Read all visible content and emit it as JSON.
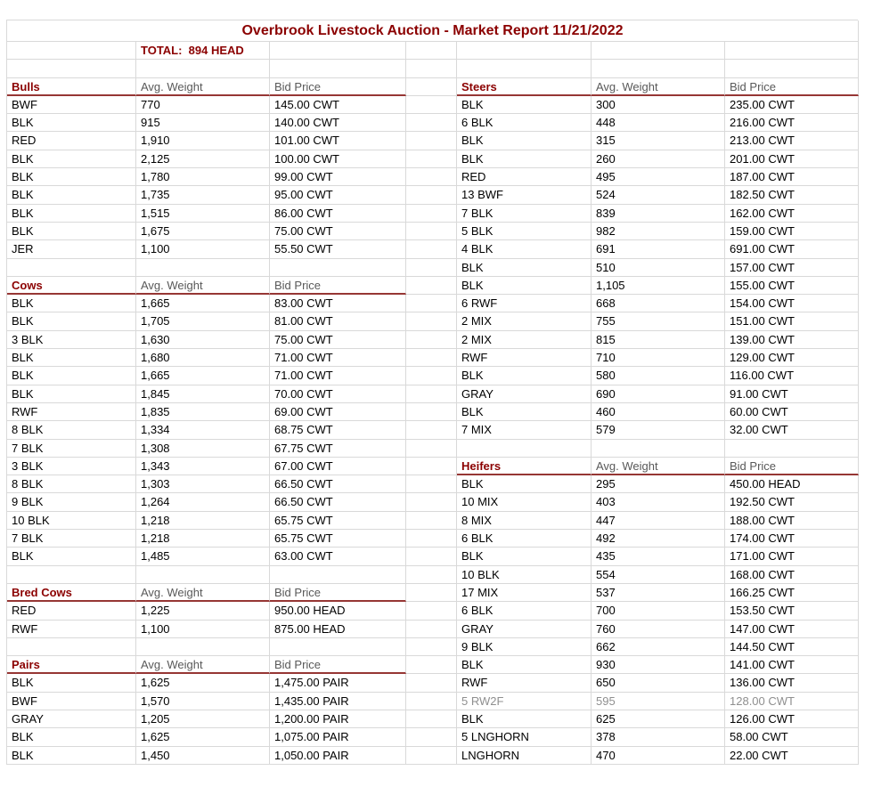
{
  "title": "Overbrook Livestock Auction - Market Report 11/21/2022",
  "total_label": "TOTAL:  894 HEAD",
  "column_headers": {
    "weight": "Avg. Weight",
    "price": "Bid Price"
  },
  "colors": {
    "accent_red": "#8B0000",
    "rule_red": "#963634",
    "grid_line": "#D9D9D9",
    "column_header_text": "#595959",
    "muted_text": "#8F8F8F",
    "data_text": "#000000"
  },
  "left_sections": [
    {
      "name": "Bulls",
      "rows": [
        [
          "BWF",
          "770",
          "145.00 CWT"
        ],
        [
          "BLK",
          "915",
          "140.00 CWT"
        ],
        [
          "RED",
          "1,910",
          "101.00 CWT"
        ],
        [
          "BLK",
          "2,125",
          "100.00 CWT"
        ],
        [
          "BLK",
          "1,780",
          "99.00 CWT"
        ],
        [
          "BLK",
          "1,735",
          "95.00 CWT"
        ],
        [
          "BLK",
          "1,515",
          "86.00 CWT"
        ],
        [
          "BLK",
          "1,675",
          "75.00 CWT"
        ],
        [
          "JER",
          "1,100",
          "55.50 CWT"
        ]
      ]
    },
    {
      "name": "Cows",
      "rows": [
        [
          "BLK",
          "1,665",
          "83.00 CWT"
        ],
        [
          "BLK",
          "1,705",
          "81.00 CWT"
        ],
        [
          "3 BLK",
          "1,630",
          "75.00 CWT"
        ],
        [
          "BLK",
          "1,680",
          "71.00 CWT"
        ],
        [
          "BLK",
          "1,665",
          "71.00 CWT"
        ],
        [
          "BLK",
          "1,845",
          "70.00 CWT"
        ],
        [
          "RWF",
          "1,835",
          "69.00 CWT"
        ],
        [
          "8 BLK",
          "1,334",
          "68.75 CWT"
        ],
        [
          "7 BLK",
          "1,308",
          "67.75 CWT"
        ],
        [
          "3 BLK",
          "1,343",
          "67.00 CWT"
        ],
        [
          "8 BLK",
          "1,303",
          "66.50 CWT"
        ],
        [
          "9 BLK",
          "1,264",
          "66.50 CWT"
        ],
        [
          "10 BLK",
          "1,218",
          "65.75 CWT"
        ],
        [
          "7 BLK",
          "1,218",
          "65.75 CWT"
        ],
        [
          "BLK",
          "1,485",
          "63.00 CWT"
        ]
      ]
    },
    {
      "name": "Bred Cows",
      "rows": [
        [
          "RED",
          "1,225",
          "950.00 HEAD"
        ],
        [
          "RWF",
          "1,100",
          "875.00 HEAD"
        ]
      ]
    },
    {
      "name": "Pairs",
      "rows": [
        [
          "BLK",
          "1,625",
          "1,475.00 PAIR"
        ],
        [
          "BWF",
          "1,570",
          "1,435.00 PAIR"
        ],
        [
          "GRAY",
          "1,205",
          "1,200.00 PAIR"
        ],
        [
          "BLK",
          "1,625",
          "1,075.00 PAIR"
        ],
        [
          "BLK",
          "1,450",
          "1,050.00 PAIR"
        ]
      ]
    }
  ],
  "right_sections": [
    {
      "name": "Steers",
      "rows": [
        [
          "BLK",
          "300",
          "235.00 CWT"
        ],
        [
          "6 BLK",
          "448",
          "216.00 CWT"
        ],
        [
          "BLK",
          "315",
          "213.00 CWT"
        ],
        [
          "BLK",
          "260",
          "201.00 CWT"
        ],
        [
          "RED",
          "495",
          "187.00 CWT"
        ],
        [
          "13 BWF",
          "524",
          "182.50 CWT"
        ],
        [
          "7 BLK",
          "839",
          "162.00 CWT"
        ],
        [
          "5 BLK",
          "982",
          "159.00 CWT"
        ],
        [
          "4 BLK",
          "691",
          "691.00 CWT"
        ],
        [
          "BLK",
          "510",
          "157.00 CWT"
        ],
        [
          "BLK",
          "1,105",
          "155.00 CWT"
        ],
        [
          "6 RWF",
          "668",
          "154.00 CWT"
        ],
        [
          "2 MIX",
          "755",
          "151.00 CWT"
        ],
        [
          "2 MIX",
          "815",
          "139.00 CWT"
        ],
        [
          "RWF",
          "710",
          "129.00 CWT"
        ],
        [
          "BLK",
          "580",
          "116.00 CWT"
        ],
        [
          "GRAY",
          "690",
          "91.00 CWT"
        ],
        [
          "BLK",
          "460",
          "60.00 CWT"
        ],
        [
          "7 MIX",
          "579",
          "32.00 CWT"
        ]
      ]
    },
    {
      "name": "Heifers",
      "rows": [
        [
          "BLK",
          "295",
          "450.00 HEAD"
        ],
        [
          "10 MIX",
          "403",
          "192.50 CWT"
        ],
        [
          "8 MIX",
          "447",
          "188.00 CWT"
        ],
        [
          "6 BLK",
          "492",
          "174.00 CWT"
        ],
        [
          "BLK",
          "435",
          "171.00 CWT"
        ],
        [
          "10 BLK",
          "554",
          "168.00 CWT"
        ],
        [
          "17 MIX",
          "537",
          "166.25 CWT"
        ],
        [
          "6 BLK",
          "700",
          "153.50 CWT"
        ],
        [
          "GRAY",
          "760",
          "147.00 CWT"
        ],
        [
          "9 BLK",
          "662",
          "144.50 CWT"
        ],
        [
          "BLK",
          "930",
          "141.00 CWT"
        ],
        [
          "RWF",
          "650",
          "136.00 CWT"
        ],
        [
          "5 RW2F",
          "595",
          "128.00 CWT",
          "muted"
        ],
        [
          "BLK",
          "625",
          "126.00 CWT"
        ],
        [
          "5 LNGHORN",
          "378",
          "58.00 CWT"
        ],
        [
          "LNGHORN",
          "470",
          "22.00 CWT"
        ]
      ]
    }
  ]
}
